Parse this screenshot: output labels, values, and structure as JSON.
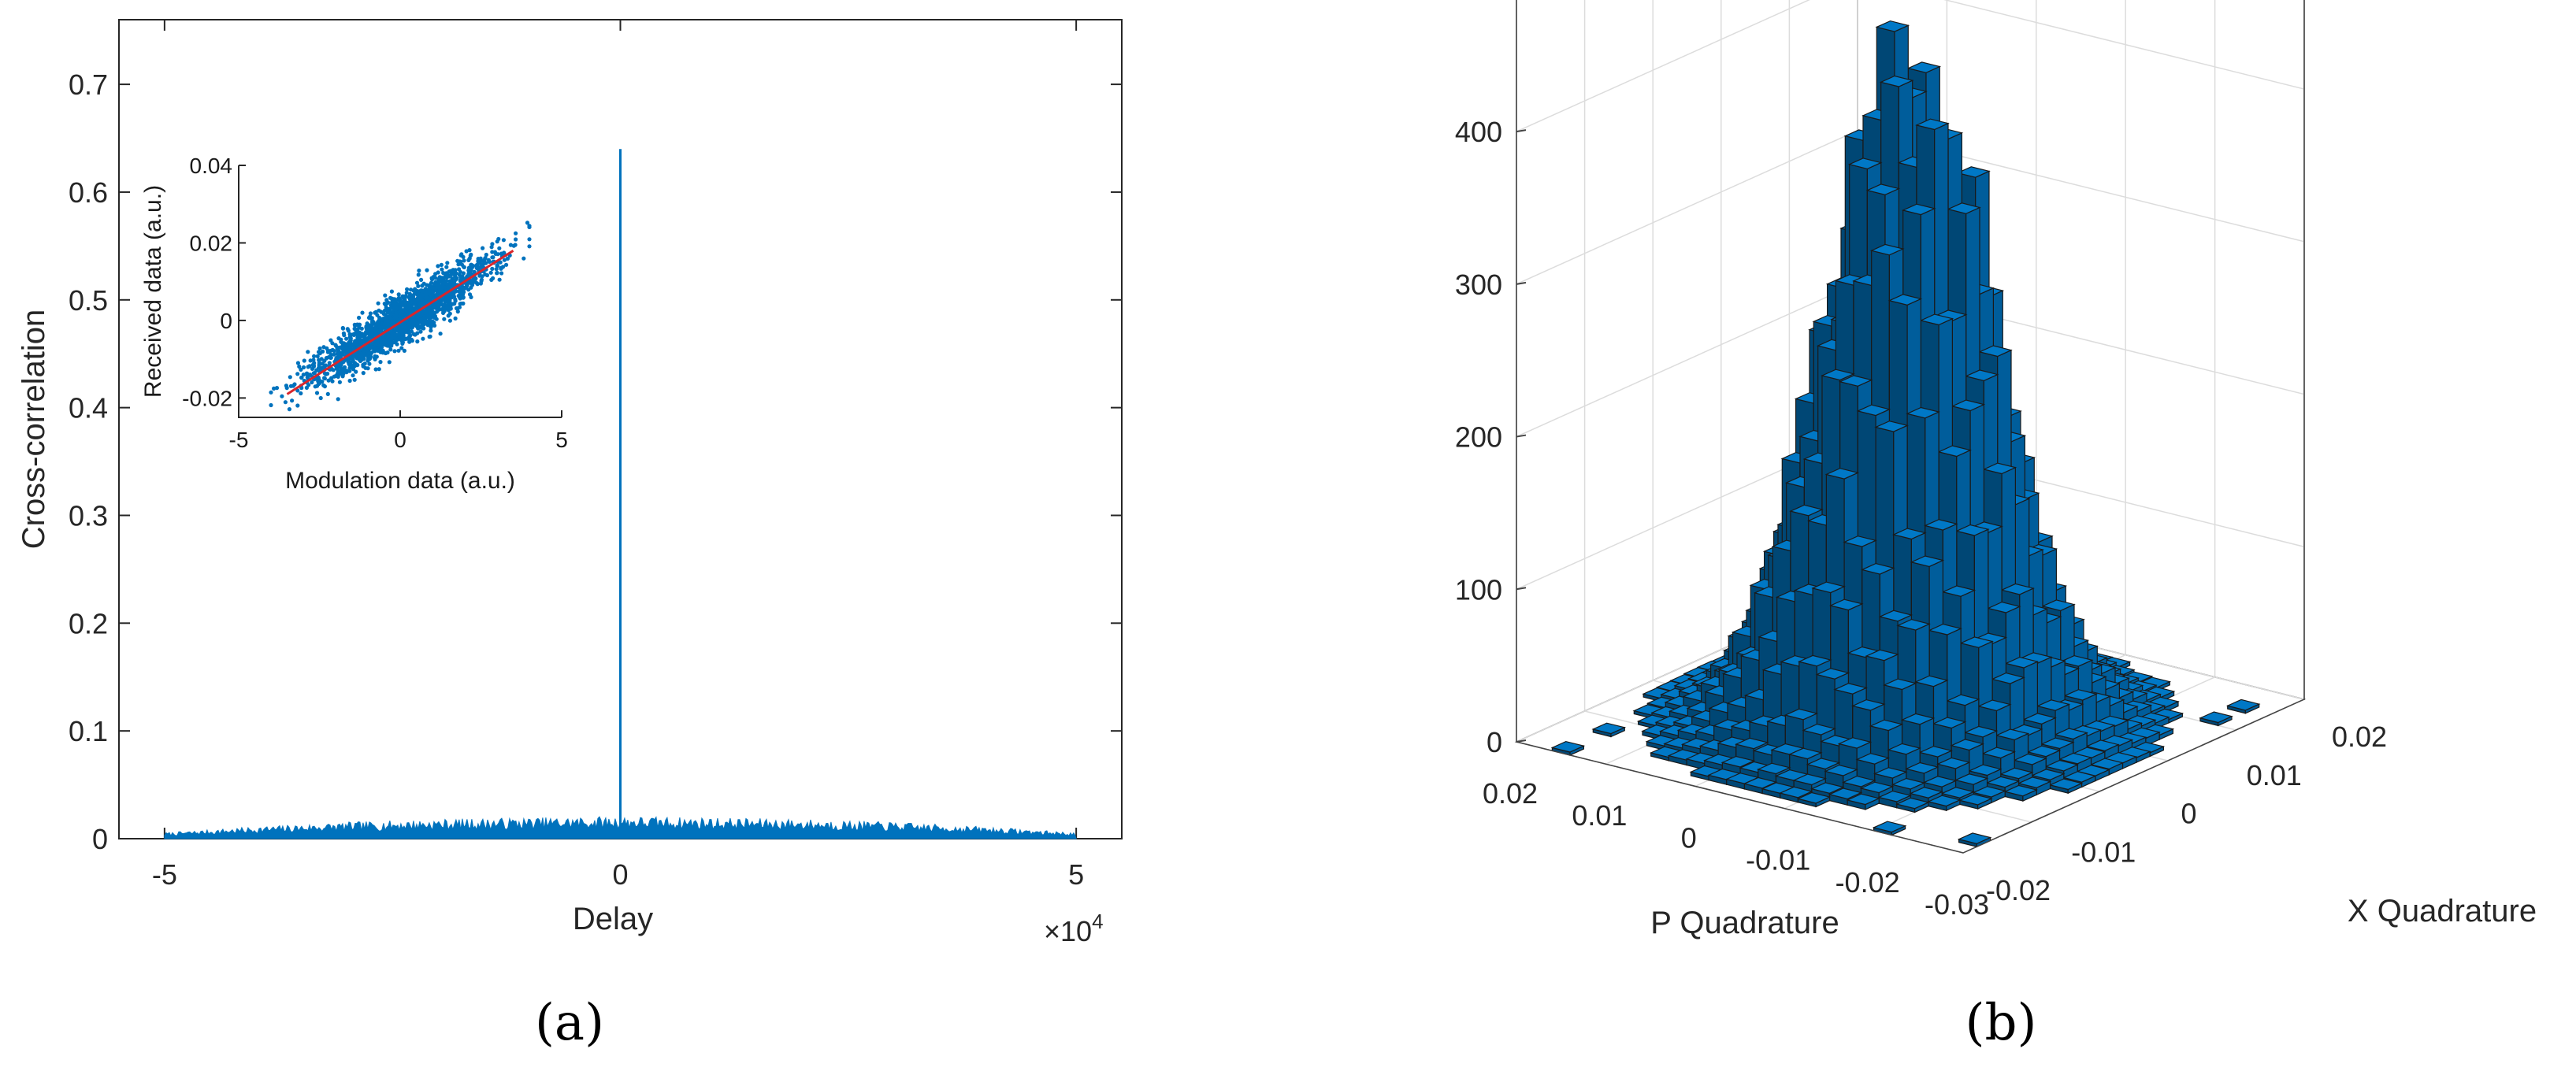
{
  "colors": {
    "bar": "#0072BD",
    "fit_line": "#D9252B",
    "axis": "#262626",
    "grid": "#DCDCDC",
    "bar_edge": "#1A1A1A"
  },
  "chart_data": [
    {
      "type": "line",
      "panel_label": "(a)",
      "xlabel": "Delay",
      "ylabel": "Cross-correlation",
      "x_exponent_label": "×10",
      "x_exponent_power": "4",
      "xlim": [
        -55000,
        55000
      ],
      "ylim": [
        0,
        0.76
      ],
      "x_ticks": [
        -50000,
        0,
        50000
      ],
      "x_tick_labels": [
        "-5",
        "0",
        "5"
      ],
      "y_ticks": [
        0,
        0.1,
        0.2,
        0.3,
        0.4,
        0.5,
        0.6,
        0.7
      ],
      "y_tick_labels": [
        "0",
        "0.1",
        "0.2",
        "0.3",
        "0.4",
        "0.5",
        "0.6",
        "0.7"
      ],
      "noise_floor": {
        "x": [
          -50000,
          -40000,
          -30000,
          -20000,
          -10000,
          0,
          10000,
          20000,
          30000,
          40000,
          50000
        ],
        "y": [
          0.004,
          0.008,
          0.011,
          0.013,
          0.014,
          0.015,
          0.014,
          0.013,
          0.011,
          0.008,
          0.004
        ]
      },
      "peak": {
        "x": 0,
        "y": 0.64
      },
      "grid": false,
      "inset": {
        "type": "scatter",
        "xlabel": "Modulation data (a.u.)",
        "ylabel": "Received data (a.u.)",
        "xlim": [
          -5,
          5
        ],
        "ylim": [
          -0.025,
          0.04
        ],
        "x_ticks": [
          -5,
          0,
          5
        ],
        "x_tick_labels": [
          "-5",
          "0",
          "5"
        ],
        "y_ticks": [
          -0.02,
          0,
          0.02,
          0.04
        ],
        "y_tick_labels": [
          "-0.02",
          "0",
          "0.02",
          "0.04"
        ],
        "fit_line": {
          "x": [
            -3.5,
            3.5
          ],
          "y": [
            -0.019,
            0.018
          ]
        },
        "point_cloud": {
          "x_range": [
            -4,
            4
          ],
          "slope": 0.0052,
          "spread": 0.0055,
          "count": 2200
        }
      }
    },
    {
      "type": "bar3d",
      "panel_label": "(b)",
      "xlabel": "P Quadrature",
      "ylabel": "X Quadrature",
      "zlim": [
        0,
        430
      ],
      "z_ticks": [
        0,
        100,
        200,
        300,
        400
      ],
      "z_tick_labels": [
        "0",
        "100",
        "200",
        "300",
        "400"
      ],
      "p_ticks": [
        0.02,
        0.01,
        0,
        -0.01,
        -0.02,
        -0.03
      ],
      "p_tick_labels": [
        "0.02",
        "0.01",
        "0",
        "-0.01",
        "-0.02",
        "-0.03"
      ],
      "x_ticks": [
        -0.02,
        -0.01,
        0,
        0.01,
        0.02
      ],
      "x_tick_labels": [
        "-0.02",
        "-0.01",
        "0",
        "0.01",
        "0.02"
      ],
      "grid": true,
      "histogram": {
        "bins": 25,
        "range": [
          -0.03,
          0.03
        ],
        "peak_count": 430,
        "sigma": 0.0085,
        "center": [
          0,
          0
        ]
      }
    }
  ]
}
